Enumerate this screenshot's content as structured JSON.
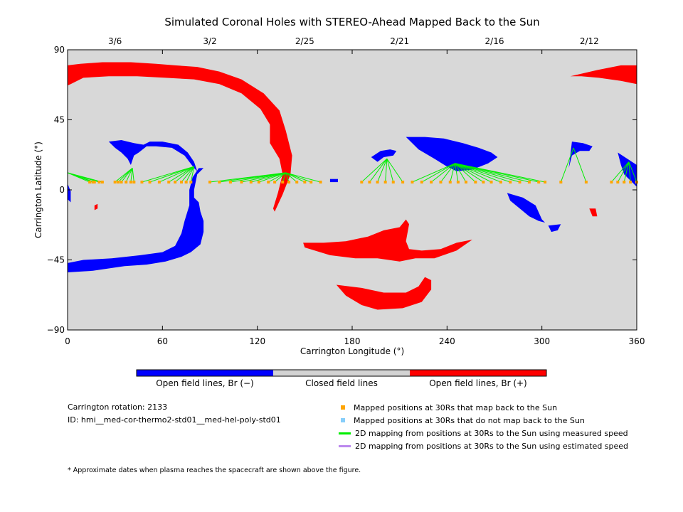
{
  "chart_data": {
    "type": "scatter",
    "title": "Simulated Coronal Holes with STEREO-Ahead Mapped Back to the Sun",
    "xlabel": "Carrington Longitude (°)",
    "ylabel": "Carrington Latitude (°)",
    "xlim": [
      0,
      360
    ],
    "ylim": [
      -90,
      90
    ],
    "x_ticks": [
      "0",
      "60",
      "120",
      "180",
      "240",
      "300",
      "360"
    ],
    "y_ticks": [
      "90",
      "45",
      "0",
      "−45",
      "−90"
    ],
    "x_tick_values": [
      0,
      60,
      120,
      180,
      240,
      300,
      360
    ],
    "y_tick_values": [
      90,
      45,
      0,
      -45,
      -90
    ],
    "top_axis_dates": [
      {
        "label": "3/6",
        "lon": 30
      },
      {
        "label": "3/2",
        "lon": 90
      },
      {
        "label": "2/25",
        "lon": 150
      },
      {
        "label": "2/21",
        "lon": 210
      },
      {
        "label": "2/16",
        "lon": 270
      },
      {
        "label": "2/12",
        "lon": 330
      }
    ],
    "background_color": "#d8d8d8",
    "colors": {
      "negative": "#0000ff",
      "positive": "#ff0000",
      "closed": "#d3d3d3",
      "maps": "#ffa500",
      "nomap": "#87cefa",
      "measured": "#00ee00",
      "estimated": "#bb88ee"
    },
    "regions": [
      {
        "polarity": "positive",
        "points": [
          [
            0,
            80
          ],
          [
            8,
            81
          ],
          [
            22,
            82
          ],
          [
            40,
            82
          ],
          [
            56,
            81
          ],
          [
            68,
            80
          ],
          [
            82,
            79
          ],
          [
            96,
            76
          ],
          [
            110,
            71
          ],
          [
            124,
            62
          ],
          [
            134,
            51
          ],
          [
            138,
            38
          ],
          [
            142,
            22
          ],
          [
            141,
            10
          ],
          [
            136,
            -3
          ],
          [
            131,
            -14
          ],
          [
            130,
            -12
          ],
          [
            133,
            -2
          ],
          [
            136,
            10
          ],
          [
            134,
            20
          ],
          [
            128,
            30
          ],
          [
            128,
            42
          ],
          [
            122,
            52
          ],
          [
            110,
            62
          ],
          [
            96,
            68
          ],
          [
            80,
            71
          ],
          [
            62,
            72
          ],
          [
            44,
            73
          ],
          [
            26,
            73
          ],
          [
            10,
            72
          ],
          [
            2,
            68
          ],
          [
            0,
            67
          ]
        ]
      },
      {
        "polarity": "positive",
        "points": [
          [
            318,
            73
          ],
          [
            335,
            77
          ],
          [
            350,
            80
          ],
          [
            360,
            80
          ],
          [
            360,
            68
          ],
          [
            350,
            70
          ],
          [
            336,
            72
          ],
          [
            325,
            73
          ]
        ]
      },
      {
        "polarity": "positive",
        "points": [
          [
            149,
            -34
          ],
          [
            162,
            -34
          ],
          [
            176,
            -33
          ],
          [
            190,
            -30
          ],
          [
            200,
            -26
          ],
          [
            210,
            -24
          ],
          [
            214,
            -19
          ],
          [
            216,
            -22
          ],
          [
            214,
            -33
          ],
          [
            216,
            -38
          ],
          [
            224,
            -39
          ],
          [
            236,
            -38
          ],
          [
            246,
            -34
          ],
          [
            256,
            -32
          ],
          [
            246,
            -39
          ],
          [
            232,
            -44
          ],
          [
            220,
            -44
          ],
          [
            210,
            -46
          ],
          [
            196,
            -44
          ],
          [
            182,
            -44
          ],
          [
            166,
            -42
          ],
          [
            150,
            -37
          ]
        ]
      },
      {
        "polarity": "positive",
        "points": [
          [
            170,
            -61
          ],
          [
            186,
            -63
          ],
          [
            200,
            -66
          ],
          [
            214,
            -66
          ],
          [
            222,
            -62
          ],
          [
            226,
            -56
          ],
          [
            230,
            -58
          ],
          [
            230,
            -64
          ],
          [
            224,
            -72
          ],
          [
            212,
            -76
          ],
          [
            196,
            -77
          ],
          [
            186,
            -74
          ],
          [
            176,
            -68
          ]
        ]
      },
      {
        "polarity": "positive",
        "points": [
          [
            17,
            -10
          ],
          [
            19,
            -9
          ],
          [
            19,
            -12
          ],
          [
            17,
            -13
          ]
        ]
      },
      {
        "polarity": "positive",
        "points": [
          [
            330,
            -12
          ],
          [
            334,
            -12
          ],
          [
            335,
            -17
          ],
          [
            332,
            -17
          ]
        ]
      },
      {
        "polarity": "negative",
        "points": [
          [
            0,
            -53
          ],
          [
            16,
            -52
          ],
          [
            36,
            -49
          ],
          [
            50,
            -48
          ],
          [
            62,
            -46
          ],
          [
            72,
            -43
          ],
          [
            78,
            -40
          ],
          [
            84,
            -35
          ],
          [
            86,
            -27
          ],
          [
            86,
            -20
          ],
          [
            84,
            -14
          ],
          [
            83,
            -8
          ],
          [
            80,
            -5
          ],
          [
            80,
            0
          ],
          [
            82,
            10
          ],
          [
            86,
            14
          ],
          [
            83,
            14
          ],
          [
            79,
            8
          ],
          [
            77,
            0
          ],
          [
            77,
            -5
          ],
          [
            77,
            -10
          ],
          [
            74,
            -20
          ],
          [
            72,
            -28
          ],
          [
            68,
            -36
          ],
          [
            60,
            -40
          ],
          [
            46,
            -42
          ],
          [
            28,
            -44
          ],
          [
            10,
            -45
          ],
          [
            0,
            -47
          ]
        ]
      },
      {
        "polarity": "negative",
        "points": [
          [
            26,
            31
          ],
          [
            34,
            32
          ],
          [
            42,
            30
          ],
          [
            48,
            29
          ],
          [
            50,
            28
          ],
          [
            45,
            24
          ],
          [
            42,
            22
          ],
          [
            40,
            16
          ],
          [
            38,
            20
          ],
          [
            34,
            24
          ],
          [
            30,
            27
          ]
        ]
      },
      {
        "polarity": "negative",
        "points": [
          [
            46,
            28
          ],
          [
            52,
            31
          ],
          [
            60,
            31
          ],
          [
            70,
            29
          ],
          [
            76,
            24
          ],
          [
            80,
            18
          ],
          [
            82,
            12
          ],
          [
            80,
            14
          ],
          [
            74,
            22
          ],
          [
            66,
            27
          ],
          [
            56,
            28
          ]
        ]
      },
      {
        "polarity": "negative",
        "points": [
          [
            0,
            4
          ],
          [
            2,
            -1
          ],
          [
            2,
            -8
          ],
          [
            0,
            -6
          ]
        ]
      },
      {
        "polarity": "negative",
        "points": [
          [
            192,
            21
          ],
          [
            198,
            25
          ],
          [
            204,
            26
          ],
          [
            208,
            25
          ],
          [
            206,
            22
          ],
          [
            200,
            21
          ],
          [
            196,
            18
          ]
        ]
      },
      {
        "polarity": "negative",
        "points": [
          [
            214,
            34
          ],
          [
            226,
            34
          ],
          [
            238,
            33
          ],
          [
            250,
            30
          ],
          [
            260,
            27
          ],
          [
            268,
            24
          ],
          [
            272,
            21
          ],
          [
            266,
            17
          ],
          [
            256,
            13
          ],
          [
            246,
            12
          ],
          [
            240,
            15
          ],
          [
            232,
            20
          ],
          [
            222,
            26
          ]
        ]
      },
      {
        "polarity": "negative",
        "points": [
          [
            278,
            -2
          ],
          [
            288,
            -5
          ],
          [
            296,
            -10
          ],
          [
            300,
            -19
          ],
          [
            302,
            -21
          ],
          [
            298,
            -20
          ],
          [
            292,
            -17
          ],
          [
            286,
            -12
          ],
          [
            280,
            -7
          ]
        ]
      },
      {
        "polarity": "negative",
        "points": [
          [
            304,
            -23
          ],
          [
            312,
            -22
          ],
          [
            310,
            -26
          ],
          [
            306,
            -27
          ]
        ]
      },
      {
        "polarity": "negative",
        "points": [
          [
            319,
            31
          ],
          [
            326,
            30
          ],
          [
            332,
            28
          ],
          [
            330,
            25
          ],
          [
            324,
            25
          ],
          [
            319,
            22
          ],
          [
            317,
            14
          ]
        ]
      },
      {
        "polarity": "negative",
        "points": [
          [
            348,
            24
          ],
          [
            354,
            20
          ],
          [
            360,
            16
          ],
          [
            360,
            2
          ],
          [
            356,
            6
          ],
          [
            352,
            10
          ],
          [
            350,
            16
          ]
        ]
      },
      {
        "polarity": "negative",
        "points": [
          [
            166,
            7
          ],
          [
            171,
            7
          ],
          [
            171,
            5
          ],
          [
            166,
            5
          ]
        ]
      }
    ],
    "mappings": [
      {
        "source": [
          0,
          11
        ],
        "targets": [
          [
            14,
            5
          ],
          [
            16,
            5
          ],
          [
            17,
            5
          ],
          [
            20,
            5
          ],
          [
            22,
            5
          ]
        ]
      },
      {
        "source": [
          41,
          14
        ],
        "targets": [
          [
            30,
            5
          ],
          [
            32,
            5
          ],
          [
            34,
            5
          ],
          [
            37,
            5
          ],
          [
            40,
            5
          ],
          [
            42,
            5
          ]
        ]
      },
      {
        "source": [
          80,
          15
        ],
        "targets": [
          [
            47,
            5
          ],
          [
            52,
            5
          ],
          [
            58,
            5
          ],
          [
            64,
            5
          ],
          [
            68,
            5
          ],
          [
            72,
            5
          ],
          [
            75,
            5
          ],
          [
            78,
            5
          ]
        ]
      },
      {
        "source": [
          138,
          11
        ],
        "targets": [
          [
            90,
            5
          ],
          [
            96,
            5
          ],
          [
            103,
            5
          ],
          [
            110,
            5
          ],
          [
            116,
            5
          ],
          [
            121,
            5
          ],
          [
            127,
            5
          ],
          [
            131,
            5
          ],
          [
            136,
            5
          ],
          [
            140,
            5
          ],
          [
            145,
            5
          ],
          [
            150,
            5
          ],
          [
            154,
            5
          ],
          [
            160,
            5
          ]
        ]
      },
      {
        "source": [
          202,
          20
        ],
        "targets": [
          [
            186,
            5
          ],
          [
            191,
            5
          ],
          [
            196,
            5
          ],
          [
            201,
            5
          ],
          [
            206,
            5
          ],
          [
            212,
            5
          ]
        ]
      },
      {
        "source": [
          245,
          17
        ],
        "targets": [
          [
            218,
            5
          ],
          [
            224,
            5
          ],
          [
            230,
            5
          ],
          [
            236,
            5
          ],
          [
            242,
            5
          ],
          [
            247,
            5
          ],
          [
            252,
            5
          ],
          [
            258,
            5
          ],
          [
            263,
            5
          ],
          [
            268,
            5
          ],
          [
            274,
            5
          ],
          [
            280,
            5
          ],
          [
            286,
            5
          ],
          [
            292,
            5
          ],
          [
            298,
            5
          ],
          [
            302,
            5
          ]
        ]
      },
      {
        "source": [
          320,
          27
        ],
        "targets": [
          [
            312,
            5
          ],
          [
            328,
            5
          ]
        ]
      },
      {
        "source": [
          355,
          18
        ],
        "targets": [
          [
            344,
            5
          ],
          [
            348,
            5
          ],
          [
            352,
            5
          ],
          [
            356,
            5
          ],
          [
            360,
            5
          ]
        ]
      }
    ]
  },
  "colorbar": {
    "labels": [
      "Open field lines, Br (−)",
      "Closed field lines",
      "Open field lines, Br (+)"
    ]
  },
  "info": {
    "rotation": "Carrington rotation: 2133",
    "id": "ID: hmi__med-cor-thermo2-std01__med-hel-poly-std01"
  },
  "legend": [
    {
      "label": "Mapped positions at 30Rs that map back to the Sun",
      "kind": "square",
      "color": "#ffa500"
    },
    {
      "label": "Mapped positions at 30Rs that do not map back to the Sun",
      "kind": "square",
      "color": "#87cefa"
    },
    {
      "label": "2D mapping from positions at 30Rs to the Sun using measured speed",
      "kind": "line",
      "color": "#00ee00"
    },
    {
      "label": "2D mapping from positions at 30Rs to the Sun using estimated speed",
      "kind": "line",
      "color": "#bb88ee"
    }
  ],
  "footnote": "* Approximate dates when plasma reaches the spacecraft are shown above the figure."
}
